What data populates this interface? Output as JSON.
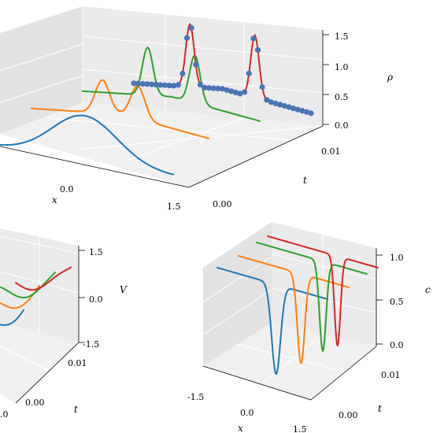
{
  "chart_data": [
    {
      "type": "line",
      "panel": "top",
      "xlabel": "x",
      "ylabel": "t",
      "zlabel": "ρ",
      "x_ticks": [
        "0.0",
        "1.5"
      ],
      "y_ticks": [
        "0.00",
        "0.01"
      ],
      "z_ticks": [
        "0.0",
        "0.5",
        "1.0",
        "1.5"
      ],
      "xlim": [
        -1.5,
        1.5
      ],
      "ylim": [
        0,
        0.015
      ],
      "zlim": [
        0,
        1.6
      ],
      "series": [
        {
          "t": 0.0,
          "color": "#1f77b4",
          "peak_x": 0.0,
          "peak_z": 0.75,
          "width": 0.55,
          "base": 0.0,
          "kind": "single"
        },
        {
          "t": 0.005,
          "color": "#ff7f0e",
          "peak_x": -0.3,
          "peak_z": 1.0,
          "width": 0.12,
          "base": 0.45,
          "kind": "double",
          "peak_x2": 0.3
        },
        {
          "t": 0.01,
          "color": "#2ca02c",
          "peak_x": -0.4,
          "peak_z": 1.25,
          "width": 0.09,
          "base": 0.45,
          "kind": "double",
          "peak_x2": 0.4
        },
        {
          "t": 0.015,
          "color": "#d62728",
          "peak_x": -0.55,
          "peak_z": 1.5,
          "width": 0.07,
          "base": 0.45,
          "kind": "double",
          "peak_x2": 0.55,
          "markers": true,
          "marker_color": "#4a74b4"
        }
      ]
    },
    {
      "type": "line",
      "panel": "bottom-left",
      "zlabel": "V",
      "x_ticks": [
        ".0"
      ],
      "y_ticks": [
        "0.00",
        "0.01"
      ],
      "z_ticks": [
        "-1.5",
        "0.0",
        "1.5"
      ],
      "ylabel": "t",
      "series": [
        {
          "t": 0.0,
          "color": "#1f77b4"
        },
        {
          "t": 0.005,
          "color": "#ff7f0e"
        },
        {
          "t": 0.01,
          "color": "#2ca02c"
        },
        {
          "t": 0.015,
          "color": "#d62728"
        }
      ]
    },
    {
      "type": "line",
      "panel": "bottom-right",
      "xlabel": "x",
      "ylabel": "t",
      "zlabel": "c",
      "x_ticks": [
        "-1.5",
        "0.0",
        "1.5"
      ],
      "y_ticks": [
        "0.00",
        "0.01"
      ],
      "z_ticks": [
        "0.0",
        "0.5",
        "1.0"
      ],
      "xlim": [
        -1.5,
        1.5
      ],
      "ylim": [
        0,
        0.015
      ],
      "zlim": [
        0,
        1.1
      ],
      "series": [
        {
          "t": 0.0,
          "color": "#1f77b4",
          "dip_x": 0.1,
          "dip_width": 0.12
        },
        {
          "t": 0.005,
          "color": "#ff7f0e",
          "dip_x": 0.2,
          "dip_width": 0.1
        },
        {
          "t": 0.01,
          "color": "#2ca02c",
          "dip_x": 0.3,
          "dip_width": 0.09
        },
        {
          "t": 0.015,
          "color": "#d62728",
          "dip_x": 0.4,
          "dip_width": 0.08
        }
      ]
    }
  ]
}
